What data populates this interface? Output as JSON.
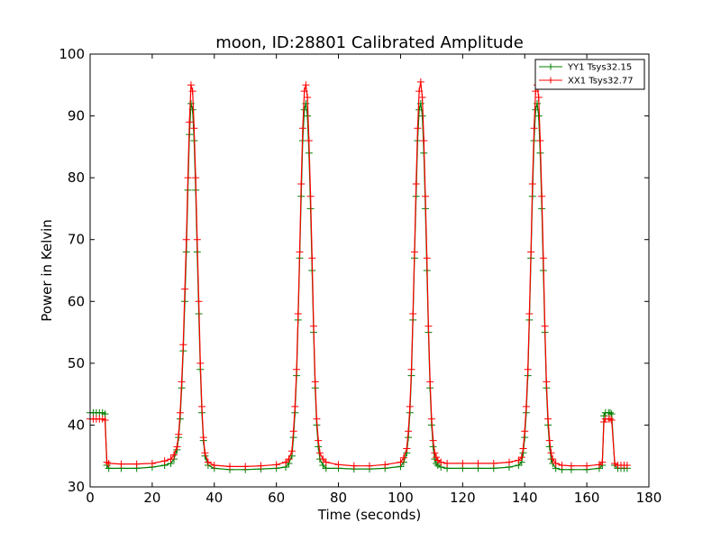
{
  "chart_data": {
    "type": "line",
    "title": "moon, ID:28801 Calibrated Amplitude",
    "xlabel": "Time (seconds)",
    "ylabel": "Power in Kelvin",
    "xlim": [
      0,
      180
    ],
    "ylim": [
      30,
      100
    ],
    "xticks": [
      0,
      20,
      40,
      60,
      80,
      100,
      120,
      140,
      160,
      180
    ],
    "yticks": [
      30,
      40,
      50,
      60,
      70,
      80,
      90,
      100
    ],
    "grid": false,
    "legend_position": "top-right",
    "marker": "+",
    "series": [
      {
        "name": "YY1 Tsys32.15",
        "color": "#008000",
        "x": [
          0,
          1,
          2,
          3,
          4,
          4.8,
          5.4,
          6,
          10,
          15,
          20,
          24,
          26,
          27,
          28,
          28.5,
          29,
          29.5,
          30,
          30.5,
          31,
          31.5,
          32,
          32.5,
          33,
          33.5,
          34,
          34.5,
          35,
          35.5,
          36,
          36.5,
          37,
          38,
          40,
          45,
          50,
          55,
          60,
          63,
          64,
          65,
          65.5,
          66,
          66.5,
          67,
          67.5,
          68,
          68.5,
          69,
          69.5,
          70,
          70.5,
          71,
          71.5,
          72,
          72.5,
          73,
          73.5,
          74,
          75,
          76,
          80,
          85,
          90,
          95,
          100,
          101,
          102,
          102.5,
          103,
          103.5,
          104,
          104.5,
          105,
          105.5,
          106,
          106.5,
          107,
          107.5,
          108,
          108.5,
          109,
          109.5,
          110,
          110.5,
          111,
          111.5,
          112,
          113,
          115,
          120,
          125,
          130,
          135,
          138,
          139,
          139.5,
          140,
          140.5,
          141,
          141.5,
          142,
          142.5,
          143,
          143.5,
          144,
          144.5,
          145,
          145.5,
          146,
          146.5,
          147,
          147.5,
          148,
          148.5,
          149,
          150,
          152,
          155,
          160,
          164,
          165,
          165.5,
          166,
          167,
          167.5,
          168,
          169,
          170,
          171,
          172,
          173
        ],
        "y": [
          42,
          42,
          42,
          42,
          42,
          41.8,
          33.5,
          33,
          33,
          33,
          33.2,
          33.5,
          33.8,
          34.5,
          36,
          38,
          41,
          46,
          52,
          60,
          68,
          78,
          87,
          92,
          91,
          86,
          78,
          68,
          58,
          49,
          42,
          37.5,
          35,
          33.5,
          33,
          32.8,
          32.8,
          32.9,
          33,
          33.2,
          33.8,
          35,
          38,
          42,
          48,
          57,
          67,
          77,
          86,
          91,
          92,
          90,
          84,
          75,
          65,
          55,
          46,
          40,
          36.5,
          34.5,
          33.5,
          33,
          33,
          32.9,
          32.9,
          33,
          33.3,
          34,
          35.5,
          38,
          42,
          48,
          57,
          67,
          77,
          86,
          91,
          92,
          90,
          84,
          75,
          65,
          55,
          46,
          40,
          36.5,
          34.5,
          33.8,
          33.5,
          33.2,
          33,
          33,
          33,
          33,
          33.2,
          33.5,
          34,
          35.5,
          38,
          42,
          48,
          57,
          67,
          77,
          86,
          91,
          92,
          90,
          84,
          75,
          65,
          55,
          46,
          40,
          36.5,
          34.5,
          33.8,
          33,
          32.8,
          32.8,
          32.8,
          33,
          33.5,
          41.5,
          42,
          42,
          42,
          41.8,
          33.5,
          33,
          33,
          33,
          33
        ]
      },
      {
        "name": "XX1 Tsys32.77",
        "color": "#ff0000",
        "x": [
          0,
          1,
          2,
          3,
          4,
          4.8,
          5.4,
          6,
          10,
          15,
          20,
          24,
          26,
          27,
          28,
          28.5,
          29,
          29.5,
          30,
          30.5,
          31,
          31.5,
          32,
          32.5,
          33,
          33.5,
          34,
          34.5,
          35,
          35.5,
          36,
          36.5,
          37,
          38,
          40,
          45,
          50,
          55,
          60,
          63,
          64,
          65,
          65.5,
          66,
          66.5,
          67,
          67.5,
          68,
          68.5,
          69,
          69.5,
          70,
          70.5,
          71,
          71.5,
          72,
          72.5,
          73,
          73.5,
          74,
          75,
          76,
          80,
          85,
          90,
          95,
          100,
          101,
          102,
          102.5,
          103,
          103.5,
          104,
          104.5,
          105,
          105.5,
          106,
          106.5,
          107,
          107.5,
          108,
          108.5,
          109,
          109.5,
          110,
          110.5,
          111,
          111.5,
          112,
          113,
          115,
          120,
          125,
          130,
          135,
          138,
          139,
          139.5,
          140,
          140.5,
          141,
          141.5,
          142,
          142.5,
          143,
          143.5,
          144,
          144.5,
          145,
          145.5,
          146,
          146.5,
          147,
          147.5,
          148,
          148.5,
          149,
          150,
          152,
          155,
          160,
          164,
          165,
          165.5,
          166,
          167,
          167.5,
          168,
          169,
          170,
          171,
          172,
          173
        ],
        "y": [
          41,
          41,
          41,
          41,
          41,
          40.8,
          34,
          33.8,
          33.7,
          33.7,
          33.8,
          34.2,
          34.5,
          35.2,
          36.5,
          38.5,
          42,
          47,
          53,
          62,
          70,
          80,
          89,
          95,
          94,
          88,
          80,
          70,
          60,
          50,
          43,
          38,
          35.5,
          34,
          33.5,
          33.3,
          33.3,
          33.4,
          33.6,
          34,
          34.5,
          35.8,
          39,
          43,
          49,
          58,
          68,
          79,
          88,
          94,
          95,
          93,
          86,
          77,
          67,
          56,
          47,
          41,
          37.5,
          35.5,
          34.5,
          34,
          33.6,
          33.4,
          33.4,
          33.6,
          34,
          34.7,
          36.2,
          39,
          43,
          49,
          58,
          68,
          79,
          88,
          94,
          95.5,
          93,
          86,
          77,
          67,
          56,
          47,
          41,
          37.5,
          35.5,
          34.8,
          34.3,
          34,
          33.8,
          33.8,
          33.8,
          33.8,
          34,
          34.3,
          34.8,
          36.2,
          39,
          43,
          49,
          58,
          68,
          79,
          88,
          94,
          95,
          93,
          86,
          77,
          67,
          56,
          47,
          41,
          37.5,
          35.5,
          34.5,
          33.8,
          33.5,
          33.4,
          33.4,
          33.6,
          34,
          40.5,
          41,
          41,
          41,
          40.8,
          33.8,
          33.5,
          33.5,
          33.5,
          33.5
        ]
      }
    ]
  }
}
